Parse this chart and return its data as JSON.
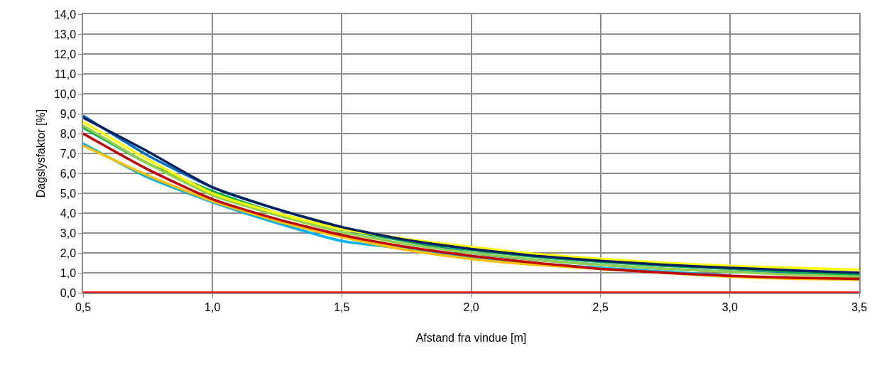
{
  "chart_data": {
    "type": "line",
    "xlabel": "Afstand fra vindue [m]",
    "ylabel": "Dagslysfaktor [%]",
    "x": [
      0.5,
      0.75,
      1.0,
      1.25,
      1.5,
      1.75,
      2.0,
      2.25,
      2.5,
      2.75,
      3.0,
      3.25,
      3.5
    ],
    "series": [
      {
        "color": "#0070c0",
        "values": [
          8.9,
          6.9,
          5.3,
          4.2,
          3.3,
          2.6,
          2.0,
          1.65,
          1.4,
          1.2,
          1.05,
          0.95,
          0.9
        ]
      },
      {
        "color": "#00b0f0",
        "values": [
          7.5,
          5.8,
          4.55,
          3.5,
          2.6,
          2.2,
          1.75,
          1.45,
          1.25,
          1.05,
          0.85,
          null,
          null
        ]
      },
      {
        "color": "#00b050",
        "values": [
          8.3,
          6.5,
          5.1,
          4.0,
          3.2,
          2.6,
          2.15,
          1.8,
          1.55,
          1.35,
          1.2,
          1.05,
          0.9
        ]
      },
      {
        "color": "#92d050",
        "values": [
          8.4,
          6.5,
          4.9,
          3.9,
          3.05,
          2.45,
          2.0,
          1.65,
          1.4,
          1.2,
          1.05,
          0.9,
          0.8
        ]
      },
      {
        "color": "#ffff00",
        "values": [
          8.6,
          6.7,
          5.0,
          4.0,
          3.2,
          2.7,
          2.3,
          1.95,
          1.7,
          1.5,
          1.35,
          1.25,
          1.15
        ]
      },
      {
        "color": "#ffc000",
        "values": [
          7.4,
          5.9,
          4.6,
          3.6,
          2.8,
          2.15,
          1.7,
          1.4,
          1.2,
          1.0,
          0.8,
          0.7,
          0.65
        ]
      },
      {
        "color": "#c00000",
        "values": [
          8.0,
          6.2,
          4.7,
          3.7,
          2.9,
          2.3,
          1.85,
          1.5,
          1.2,
          1.0,
          0.85,
          0.75,
          0.7
        ]
      },
      {
        "color": "#002060",
        "values": [
          8.8,
          7.1,
          5.3,
          4.2,
          3.3,
          2.65,
          2.2,
          1.85,
          1.6,
          1.4,
          1.25,
          1.12,
          1.0
        ]
      },
      {
        "color": "#ff0000",
        "values": [
          0,
          0,
          0,
          0,
          0,
          0,
          0,
          0,
          0,
          0,
          0,
          0,
          0
        ]
      }
    ],
    "xlim": [
      0.5,
      3.5
    ],
    "xticks": [
      {
        "value": 0.5,
        "label": "0,5"
      },
      {
        "value": 1.0,
        "label": "1,0"
      },
      {
        "value": 1.5,
        "label": "1,5"
      },
      {
        "value": 2.0,
        "label": "2,0"
      },
      {
        "value": 2.5,
        "label": "2,5"
      },
      {
        "value": 3.0,
        "label": "3,0"
      },
      {
        "value": 3.5,
        "label": "3,5"
      }
    ],
    "ylim": [
      0,
      14
    ],
    "yticks": [
      {
        "value": 0,
        "label": "0,0"
      },
      {
        "value": 1,
        "label": "1,0"
      },
      {
        "value": 2,
        "label": "2,0"
      },
      {
        "value": 3,
        "label": "3,0"
      },
      {
        "value": 4,
        "label": "4,0"
      },
      {
        "value": 5,
        "label": "5,0"
      },
      {
        "value": 6,
        "label": "6,0"
      },
      {
        "value": 7,
        "label": "7,0"
      },
      {
        "value": 8,
        "label": "8,0"
      },
      {
        "value": 9,
        "label": "9,0"
      },
      {
        "value": 10,
        "label": "10,0"
      },
      {
        "value": 11,
        "label": "11,0"
      },
      {
        "value": 12,
        "label": "12,0"
      },
      {
        "value": 13,
        "label": "13,0"
      },
      {
        "value": 14,
        "label": "14,0"
      }
    ],
    "grid": true,
    "marker": "none",
    "line_style": "solid"
  }
}
